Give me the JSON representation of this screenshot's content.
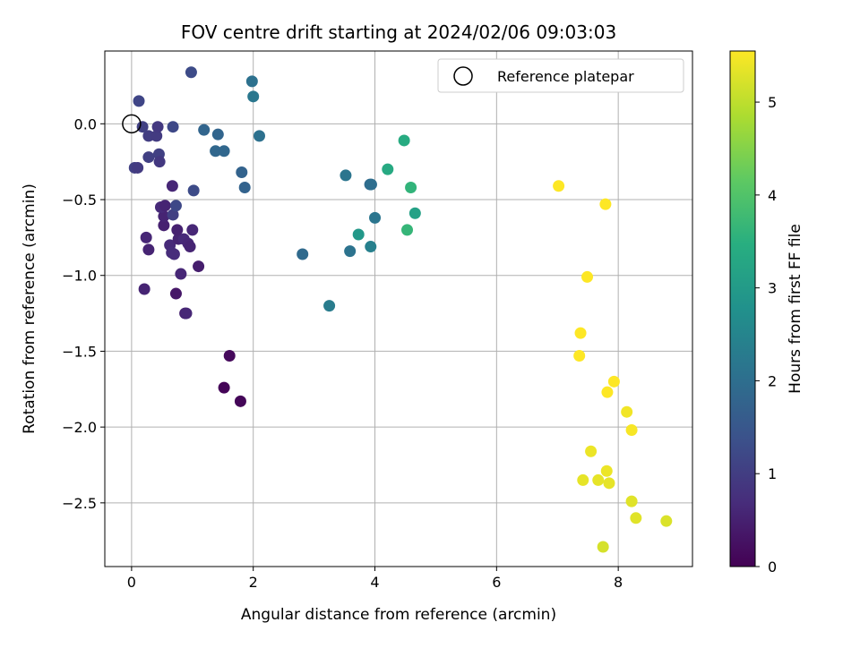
{
  "chart_data": {
    "type": "scatter",
    "title": "FOV centre drift starting at 2024/02/06 09:03:03",
    "xlabel": "Angular distance from reference (arcmin)",
    "ylabel": "Rotation from reference (arcmin)",
    "colorbar_label": "Hours from first FF file",
    "xlim": [
      -0.44,
      9.22
    ],
    "ylim": [
      -2.92,
      0.48
    ],
    "xticks": [
      0,
      2,
      4,
      6,
      8
    ],
    "xtick_labels": [
      "0",
      "2",
      "4",
      "6",
      "8"
    ],
    "yticks": [
      0.0,
      -0.5,
      -1.0,
      -1.5,
      -2.0,
      -2.5
    ],
    "ytick_labels": [
      "0.0",
      "−0.5",
      "−1.0",
      "−1.5",
      "−2.0",
      "−2.5"
    ],
    "colorbar_range": [
      0,
      5.55
    ],
    "colorbar_ticks": [
      0,
      1,
      2,
      3,
      4,
      5
    ],
    "colorbar_tick_labels": [
      "0",
      "1",
      "2",
      "3",
      "4",
      "5"
    ],
    "colormap": "viridis",
    "grid": true,
    "legend": {
      "position": "top-right",
      "entries": [
        "Reference platepar"
      ]
    },
    "reference_point": {
      "x": 0,
      "y": 0
    },
    "points": [
      {
        "x": 1.52,
        "y": -1.74,
        "h": 0.05
      },
      {
        "x": 1.79,
        "y": -1.83,
        "h": 0.08
      },
      {
        "x": 1.61,
        "y": -1.53,
        "h": 0.12
      },
      {
        "x": 0.21,
        "y": -1.09,
        "h": 0.55
      },
      {
        "x": 0.73,
        "y": -1.12,
        "h": 0.35
      },
      {
        "x": 0.88,
        "y": -1.25,
        "h": 0.5
      },
      {
        "x": 0.9,
        "y": -1.25,
        "h": 0.6
      },
      {
        "x": 0.81,
        "y": -0.99,
        "h": 0.6
      },
      {
        "x": 1.1,
        "y": -0.94,
        "h": 0.45
      },
      {
        "x": 0.28,
        "y": -0.83,
        "h": 0.55
      },
      {
        "x": 0.24,
        "y": -0.75,
        "h": 0.6
      },
      {
        "x": 0.63,
        "y": -0.8,
        "h": 0.65
      },
      {
        "x": 0.66,
        "y": -0.85,
        "h": 0.7
      },
      {
        "x": 0.7,
        "y": -0.86,
        "h": 0.7
      },
      {
        "x": 0.77,
        "y": -0.76,
        "h": 0.55
      },
      {
        "x": 0.86,
        "y": -0.76,
        "h": 0.65
      },
      {
        "x": 0.93,
        "y": -0.79,
        "h": 0.6
      },
      {
        "x": 0.96,
        "y": -0.81,
        "h": 0.55
      },
      {
        "x": 1.0,
        "y": -0.7,
        "h": 0.6
      },
      {
        "x": 0.75,
        "y": -0.7,
        "h": 0.5
      },
      {
        "x": 0.53,
        "y": -0.67,
        "h": 0.5
      },
      {
        "x": 0.53,
        "y": -0.61,
        "h": 0.55
      },
      {
        "x": 0.48,
        "y": -0.55,
        "h": 0.65
      },
      {
        "x": 0.55,
        "y": -0.54,
        "h": 0.55
      },
      {
        "x": 0.67,
        "y": -0.41,
        "h": 0.6
      },
      {
        "x": 0.68,
        "y": -0.6,
        "h": 1.05
      },
      {
        "x": 0.73,
        "y": -0.54,
        "h": 1.2
      },
      {
        "x": 0.05,
        "y": -0.29,
        "h": 1.05
      },
      {
        "x": 0.1,
        "y": -0.29,
        "h": 0.95
      },
      {
        "x": 0.28,
        "y": -0.22,
        "h": 1.05
      },
      {
        "x": 0.45,
        "y": -0.2,
        "h": 1.05
      },
      {
        "x": 0.46,
        "y": -0.25,
        "h": 0.9
      },
      {
        "x": 0.28,
        "y": -0.08,
        "h": 1.0
      },
      {
        "x": 0.41,
        "y": -0.08,
        "h": 0.95
      },
      {
        "x": 0.18,
        "y": -0.02,
        "h": 1.05
      },
      {
        "x": 0.43,
        "y": -0.02,
        "h": 0.9
      },
      {
        "x": 0.68,
        "y": -0.02,
        "h": 1.2
      },
      {
        "x": 0.12,
        "y": 0.15,
        "h": 1.15
      },
      {
        "x": 0.98,
        "y": 0.34,
        "h": 1.25
      },
      {
        "x": 1.02,
        "y": -0.44,
        "h": 1.25
      },
      {
        "x": 1.19,
        "y": -0.04,
        "h": 1.8
      },
      {
        "x": 1.42,
        "y": -0.07,
        "h": 1.8
      },
      {
        "x": 1.38,
        "y": -0.18,
        "h": 1.85
      },
      {
        "x": 1.52,
        "y": -0.18,
        "h": 1.85
      },
      {
        "x": 1.81,
        "y": -0.32,
        "h": 1.75
      },
      {
        "x": 1.86,
        "y": -0.42,
        "h": 1.75
      },
      {
        "x": 1.98,
        "y": 0.28,
        "h": 2.05
      },
      {
        "x": 2.0,
        "y": 0.18,
        "h": 2.2
      },
      {
        "x": 2.1,
        "y": -0.08,
        "h": 2.05
      },
      {
        "x": 2.81,
        "y": -0.86,
        "h": 1.9
      },
      {
        "x": 3.25,
        "y": -1.2,
        "h": 2.3
      },
      {
        "x": 3.52,
        "y": -0.34,
        "h": 2.15
      },
      {
        "x": 3.59,
        "y": -0.84,
        "h": 2.1
      },
      {
        "x": 3.73,
        "y": -0.73,
        "h": 2.95
      },
      {
        "x": 3.92,
        "y": -0.4,
        "h": 1.9
      },
      {
        "x": 3.94,
        "y": -0.4,
        "h": 2.0
      },
      {
        "x": 3.93,
        "y": -0.81,
        "h": 2.4
      },
      {
        "x": 4.0,
        "y": -0.62,
        "h": 2.15
      },
      {
        "x": 4.21,
        "y": -0.3,
        "h": 3.35
      },
      {
        "x": 4.48,
        "y": -0.11,
        "h": 3.4
      },
      {
        "x": 4.59,
        "y": -0.42,
        "h": 3.6
      },
      {
        "x": 4.53,
        "y": -0.7,
        "h": 3.65
      },
      {
        "x": 4.66,
        "y": -0.59,
        "h": 3.15
      },
      {
        "x": 7.02,
        "y": -0.41,
        "h": 5.55
      },
      {
        "x": 7.79,
        "y": -0.53,
        "h": 5.55
      },
      {
        "x": 7.49,
        "y": -1.01,
        "h": 5.55
      },
      {
        "x": 7.38,
        "y": -1.38,
        "h": 5.55
      },
      {
        "x": 7.36,
        "y": -1.53,
        "h": 5.55
      },
      {
        "x": 7.93,
        "y": -1.7,
        "h": 5.55
      },
      {
        "x": 7.82,
        "y": -1.77,
        "h": 5.55
      },
      {
        "x": 8.14,
        "y": -1.9,
        "h": 5.45
      },
      {
        "x": 8.22,
        "y": -2.02,
        "h": 5.5
      },
      {
        "x": 7.55,
        "y": -2.16,
        "h": 5.4
      },
      {
        "x": 7.81,
        "y": -2.29,
        "h": 5.4
      },
      {
        "x": 7.42,
        "y": -2.35,
        "h": 5.35
      },
      {
        "x": 7.67,
        "y": -2.35,
        "h": 5.35
      },
      {
        "x": 7.85,
        "y": -2.37,
        "h": 5.35
      },
      {
        "x": 8.22,
        "y": -2.49,
        "h": 5.3
      },
      {
        "x": 8.29,
        "y": -2.6,
        "h": 5.3
      },
      {
        "x": 8.79,
        "y": -2.62,
        "h": 5.25
      },
      {
        "x": 7.75,
        "y": -2.79,
        "h": 5.2
      }
    ]
  }
}
